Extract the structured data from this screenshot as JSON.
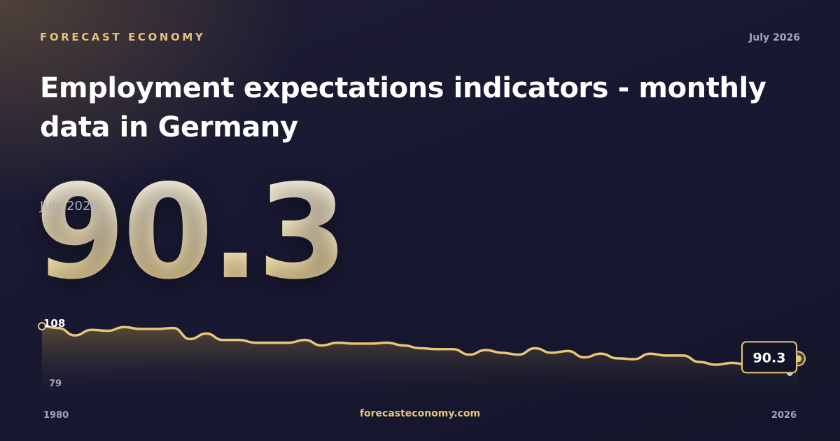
{
  "header": {
    "brand": "FORECAST ECONOMY",
    "date": "July 2026"
  },
  "title": "Employment expectations indicators - monthly data in Germany",
  "latest": {
    "value": "90.3",
    "date": "July 2026"
  },
  "footer": {
    "site": "forecasteconomy.com"
  },
  "colors": {
    "accent": "#e3c27a",
    "line": "#e9c675",
    "background": "#181830"
  },
  "chart_data": {
    "type": "area",
    "x_start_label": "1980",
    "x_end_label": "2026",
    "max_label": "108",
    "min_label": "79",
    "last_label": "90.3",
    "ylim": [
      79,
      108
    ],
    "x": [
      1980,
      1981,
      1982,
      1983,
      1984,
      1985,
      1986,
      1987,
      1988,
      1989,
      1990,
      1991,
      1992,
      1993,
      1994,
      1995,
      1996,
      1997,
      1998,
      1999,
      2000,
      2001,
      2002,
      2003,
      2004,
      2005,
      2006,
      2007,
      2008,
      2009,
      2010,
      2011,
      2012,
      2013,
      2014,
      2015,
      2016,
      2017,
      2018,
      2019,
      2020,
      2021,
      2022,
      2023,
      2024,
      2025,
      2025.5,
      2026
    ],
    "values": [
      108,
      107,
      103,
      106,
      105.5,
      107.5,
      106.5,
      106.5,
      107,
      101,
      104,
      100.5,
      100.5,
      99,
      99,
      99,
      100.5,
      97.5,
      99,
      98.5,
      98.5,
      99,
      97.5,
      96,
      95.5,
      95.5,
      92.5,
      95,
      93.5,
      92.5,
      96,
      93.5,
      94.5,
      91,
      93,
      90.5,
      90,
      93,
      92,
      92,
      88.5,
      87,
      88,
      87,
      86,
      84,
      83,
      90.3
    ]
  }
}
